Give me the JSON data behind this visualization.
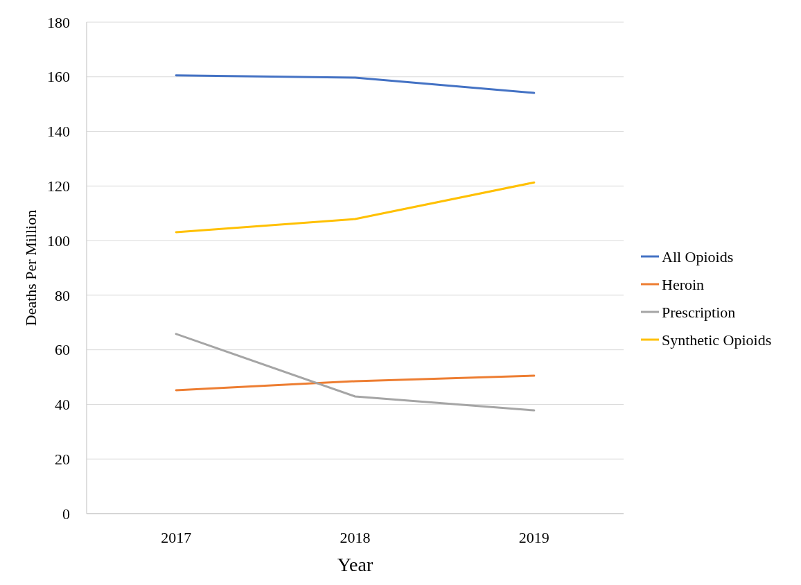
{
  "chart_data": {
    "type": "line",
    "xlabel": "Year",
    "ylabel": "Deaths Per Million",
    "categories": [
      "2017",
      "2018",
      "2019"
    ],
    "series": [
      {
        "name": "All Opioids",
        "color": "#4472c4",
        "values": [
          160.5,
          159.7,
          154.1
        ]
      },
      {
        "name": "Heroin",
        "color": "#ed7d31",
        "values": [
          45.2,
          48.5,
          50.5
        ]
      },
      {
        "name": "Prescription",
        "color": "#a5a5a5",
        "values": [
          65.8,
          42.9,
          37.8
        ]
      },
      {
        "name": "Synthetic Opioids",
        "color": "#ffc000",
        "values": [
          103.1,
          107.9,
          121.3
        ]
      }
    ],
    "ylim": [
      0,
      180
    ],
    "yticks": [
      0,
      20,
      40,
      60,
      80,
      100,
      120,
      140,
      160,
      180
    ],
    "grid": "y",
    "legend": "right",
    "marker": "none",
    "line_style": "solid"
  }
}
